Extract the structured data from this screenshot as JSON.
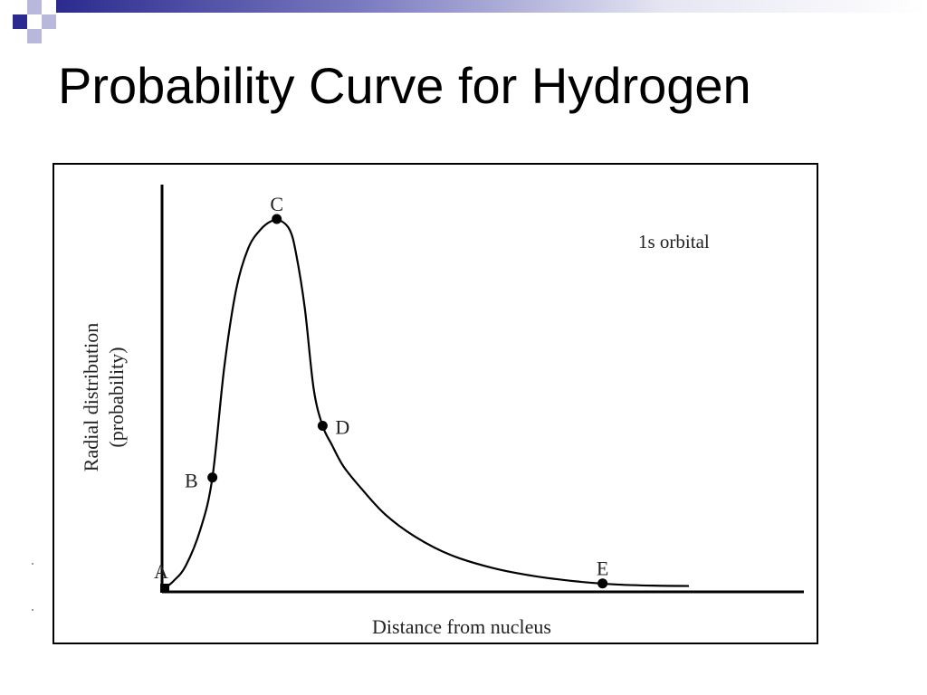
{
  "slide": {
    "title": "Probability Curve for Hydrogen",
    "accent_color": "#2b2b8f",
    "accent_light": "#b8b8dc"
  },
  "chart_data": {
    "type": "line",
    "title": "",
    "xlabel": "Distance from nucleus",
    "ylabel_line1": "Radial distribution",
    "ylabel_line2": "(probability)",
    "annotation": "1s orbital",
    "xlim": [
      0,
      10
    ],
    "ylim": [
      0,
      1.0
    ],
    "grid": false,
    "series": [
      {
        "x": [
          0,
          0.15,
          0.35,
          0.6,
          0.8,
          1.0,
          1.2,
          1.4,
          1.6,
          1.8,
          1.95,
          2.1,
          2.2,
          2.35,
          2.5,
          2.65,
          2.8,
          3.0,
          3.3,
          3.7,
          4.2,
          4.8,
          5.5,
          6.2,
          7.0,
          7.6,
          8.2,
          8.8
        ],
        "y": [
          0.0,
          0.02,
          0.06,
          0.16,
          0.3,
          0.6,
          0.81,
          0.92,
          0.97,
          0.995,
          0.995,
          0.97,
          0.91,
          0.76,
          0.54,
          0.44,
          0.39,
          0.33,
          0.27,
          0.2,
          0.14,
          0.09,
          0.055,
          0.033,
          0.017,
          0.01,
          0.007,
          0.006
        ]
      }
    ],
    "points": [
      {
        "label": "A",
        "x": 0.0,
        "y": 0.0
      },
      {
        "label": "B",
        "x": 0.8,
        "y": 0.3
      },
      {
        "label": "C",
        "x": 1.88,
        "y": 1.0
      },
      {
        "label": "D",
        "x": 2.65,
        "y": 0.44
      },
      {
        "label": "E",
        "x": 7.35,
        "y": 0.013
      }
    ]
  }
}
